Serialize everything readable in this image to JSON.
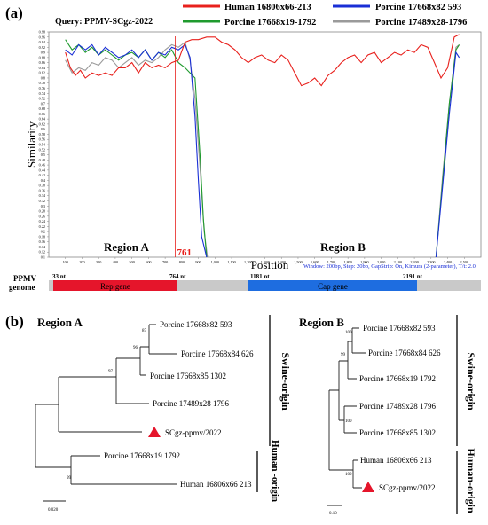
{
  "panel_a": {
    "label": "(a)",
    "query": "Query: PPMV-SCgz-2022",
    "legend": [
      {
        "name": "Human 16806x66-213",
        "color": "#e8201c"
      },
      {
        "name": "Porcine 17668x82 593",
        "color": "#1a2fd6"
      },
      {
        "name": "Porcine 17668x19-1792",
        "color": "#1f9a2e"
      },
      {
        "name": "Porcine 17489x28-1796",
        "color": "#9a9a9a"
      }
    ],
    "region_a": "Region A",
    "region_b": "Region B",
    "breakpoint_label": "761",
    "settings": "Window: 200bp, Step: 20bp, GapStrip: On, Kimura (2-parameter), T/t: 2.0",
    "genome": {
      "title_line1": "PPMV",
      "title_line2": "genome",
      "rep": {
        "label": "Rep gene",
        "start": "33 nt",
        "end": "764 nt"
      },
      "cap": {
        "label": "Cap gene",
        "start": "1181 nt",
        "end": "2191 nt"
      }
    }
  },
  "chart_data": {
    "type": "line",
    "xlabel": "Position",
    "ylabel": "Similarity",
    "xlim": [
      0,
      2600
    ],
    "ylim": [
      0.1,
      0.98
    ],
    "x_ticks": [
      "100",
      "200",
      "300",
      "400",
      "500",
      "600",
      "700",
      "800",
      "900",
      "1,000",
      "1,100",
      "1,200",
      "1,300",
      "1,400",
      "1,500",
      "1,600",
      "1,700",
      "1,800",
      "1,900",
      "2,000",
      "2,100",
      "2,200",
      "2,300",
      "2,400",
      "2,500"
    ],
    "y_ticks": [
      "0.1",
      "0.12",
      "0.14",
      "0.16",
      "0.18",
      "0.2",
      "0.22",
      "0.24",
      "0.26",
      "0.28",
      "0.3",
      "0.32",
      "0.34",
      "0.36",
      "0.38",
      "0.4",
      "0.42",
      "0.44",
      "0.46",
      "0.48",
      "0.5",
      "0.52",
      "0.54",
      "0.56",
      "0.58",
      "0.6",
      "0.62",
      "0.64",
      "0.66",
      "0.68",
      "0.7",
      "0.72",
      "0.74",
      "0.76",
      "0.78",
      "0.8",
      "0.82",
      "0.84",
      "0.86",
      "0.88",
      "0.9",
      "0.92",
      "0.94",
      "0.96",
      "0.98"
    ],
    "breakpoint_x": 761,
    "series": [
      {
        "name": "Human 16806x66-213",
        "color": "#e8201c",
        "x": [
          100,
          130,
          160,
          190,
          220,
          260,
          300,
          340,
          380,
          420,
          460,
          500,
          540,
          580,
          620,
          660,
          700,
          740,
          780,
          820,
          860,
          900,
          950,
          1000,
          1040,
          1080,
          1120,
          1160,
          1200,
          1240,
          1280,
          1320,
          1360,
          1400,
          1440,
          1480,
          1520,
          1560,
          1600,
          1640,
          1680,
          1720,
          1760,
          1800,
          1840,
          1880,
          1920,
          1960,
          2000,
          2040,
          2080,
          2120,
          2160,
          2200,
          2240,
          2280,
          2320,
          2360,
          2400,
          2440,
          2470
        ],
        "y": [
          0.9,
          0.84,
          0.81,
          0.83,
          0.8,
          0.82,
          0.81,
          0.82,
          0.81,
          0.84,
          0.84,
          0.86,
          0.82,
          0.86,
          0.84,
          0.85,
          0.84,
          0.86,
          0.87,
          0.94,
          0.95,
          0.95,
          0.96,
          0.96,
          0.94,
          0.93,
          0.91,
          0.88,
          0.86,
          0.88,
          0.89,
          0.87,
          0.86,
          0.89,
          0.87,
          0.82,
          0.77,
          0.78,
          0.8,
          0.77,
          0.81,
          0.83,
          0.86,
          0.88,
          0.89,
          0.86,
          0.89,
          0.9,
          0.86,
          0.88,
          0.9,
          0.89,
          0.91,
          0.9,
          0.93,
          0.92,
          0.86,
          0.8,
          0.84,
          0.96,
          0.97
        ]
      },
      {
        "name": "Porcine 17668x82 593",
        "color": "#1a2fd6",
        "x": [
          100,
          140,
          180,
          220,
          260,
          300,
          340,
          380,
          420,
          460,
          500,
          540,
          580,
          620,
          660,
          700,
          740,
          780,
          820,
          850,
          880,
          900,
          920,
          950,
          2330,
          2370,
          2410,
          2450,
          2470
        ],
        "y": [
          0.91,
          0.89,
          0.93,
          0.91,
          0.93,
          0.89,
          0.92,
          0.9,
          0.88,
          0.89,
          0.91,
          0.88,
          0.91,
          0.87,
          0.9,
          0.89,
          0.92,
          0.91,
          0.93,
          0.88,
          0.65,
          0.4,
          0.18,
          0.1,
          0.1,
          0.38,
          0.66,
          0.9,
          0.88
        ]
      },
      {
        "name": "Porcine 17668x19-1792",
        "color": "#1f9a2e",
        "x": [
          100,
          140,
          180,
          220,
          260,
          300,
          340,
          380,
          420,
          460,
          500,
          540,
          580,
          620,
          660,
          700,
          740,
          780,
          820,
          850,
          880,
          910,
          930,
          950,
          2330,
          2370,
          2410,
          2450,
          2470
        ],
        "y": [
          0.95,
          0.91,
          0.93,
          0.9,
          0.92,
          0.89,
          0.91,
          0.89,
          0.87,
          0.89,
          0.9,
          0.88,
          0.91,
          0.87,
          0.9,
          0.88,
          0.91,
          0.86,
          0.84,
          0.82,
          0.8,
          0.5,
          0.25,
          0.1,
          0.1,
          0.4,
          0.7,
          0.91,
          0.93
        ]
      },
      {
        "name": "Porcine 17489x28-1796",
        "color": "#9a9a9a",
        "x": [
          100,
          140,
          180,
          220,
          260,
          300,
          340,
          380,
          420,
          460,
          500,
          540,
          580,
          620,
          660,
          700,
          740,
          780,
          820,
          850,
          880,
          910,
          935,
          955,
          2330,
          2370,
          2410,
          2450,
          2470
        ],
        "y": [
          0.87,
          0.82,
          0.84,
          0.83,
          0.86,
          0.85,
          0.88,
          0.87,
          0.84,
          0.86,
          0.88,
          0.85,
          0.87,
          0.86,
          0.88,
          0.91,
          0.93,
          0.92,
          0.94,
          0.87,
          0.72,
          0.45,
          0.2,
          0.1,
          0.1,
          0.42,
          0.7,
          0.92,
          0.93
        ]
      }
    ]
  },
  "panel_b": {
    "label": "(b)",
    "region_a": {
      "title": "Region A",
      "leaves": [
        "Porcine 17668x82 593",
        "Porcine 17668x84 626",
        "Porcine 17668x85 1302",
        "Porcine 17489x28 1796",
        "SCgz-ppmv/2022",
        "Porcine 17668x19 1792",
        "Human 16806x66 213"
      ],
      "bootstraps": [
        "87",
        "96",
        "97",
        "99"
      ],
      "swine_label": "Swine-origin",
      "human_label": "Human -origin",
      "scale": "0.020"
    },
    "region_b": {
      "title": "Region B",
      "leaves": [
        "Porcine 17668x82 593",
        "Porcine  17668x84 626",
        "Porcine 17668x19 1792",
        "Porcine 17489x28 1796",
        "Porcine 17668x85 1302",
        "Human 16806x66 213",
        "SCgz-ppmv/2022"
      ],
      "bootstraps": [
        "100",
        "99",
        "100",
        "100"
      ],
      "swine_label": "Swine-origin",
      "human_label": "Human-origin",
      "scale": "0.10"
    }
  }
}
